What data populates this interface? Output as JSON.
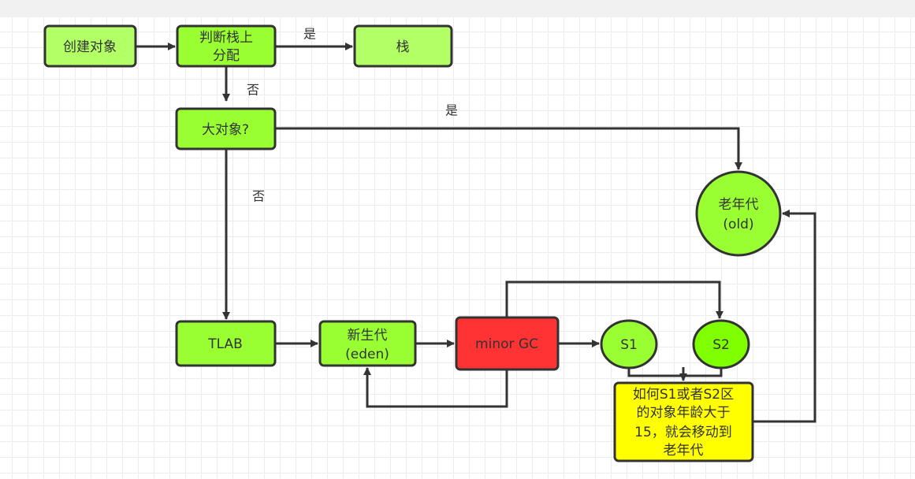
{
  "colors": {
    "light_green": "#b3ff66",
    "green": "#99ff33",
    "bright_green": "#80ff00",
    "red": "#ff3333",
    "yellow": "#ffff00",
    "stroke": "#333333"
  },
  "nodes": {
    "create": "创建对象",
    "stack_check": [
      "判断栈上",
      "分配"
    ],
    "stack": "栈",
    "large_object": "大对象?",
    "tlab": "TLAB",
    "eden": [
      "新生代",
      "(eden)"
    ],
    "minor_gc": "minor GC",
    "s1": "S1",
    "s2": "S2",
    "old": [
      "老年代",
      "(old)"
    ],
    "age_note": [
      "如何S1或者S2区",
      "的对象年龄大于",
      "15，就会移动到",
      "老年代"
    ]
  },
  "edge_labels": {
    "stack_yes": "是",
    "stack_no": "否",
    "large_yes": "是",
    "large_no": "否"
  }
}
